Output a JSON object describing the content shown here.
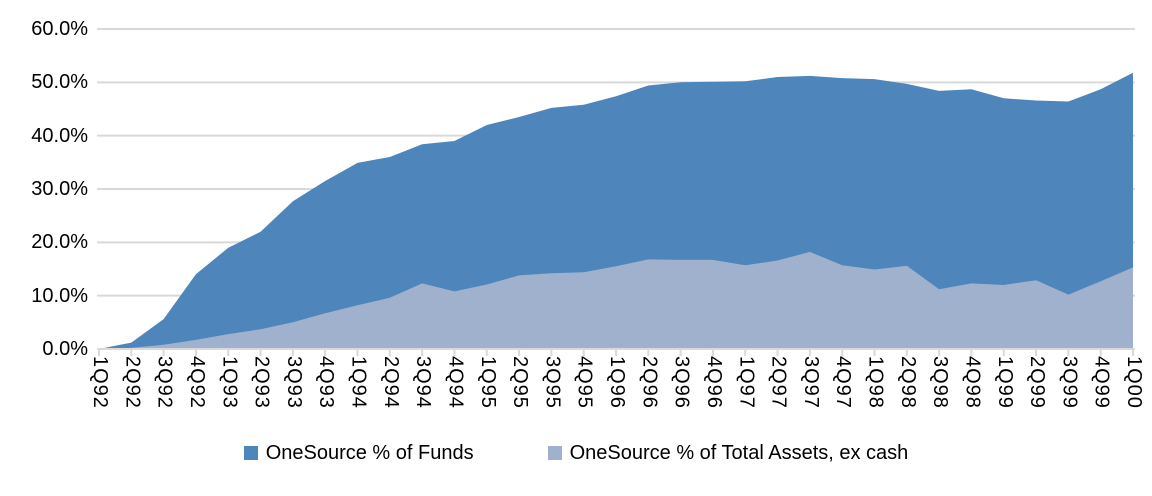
{
  "chart_data": {
    "type": "area",
    "mode": "overlapping",
    "title": "",
    "xlabel": "",
    "ylabel": "",
    "categories": [
      "1Q92",
      "2Q92",
      "3Q92",
      "4Q92",
      "1Q93",
      "2Q93",
      "3Q93",
      "4Q93",
      "1Q94",
      "2Q94",
      "3Q94",
      "4Q94",
      "1Q95",
      "2Q95",
      "3Q95",
      "4Q95",
      "1Q96",
      "2Q96",
      "3Q96",
      "4Q96",
      "1Q97",
      "2Q97",
      "3Q97",
      "4Q97",
      "1Q98",
      "2Q98",
      "3Q98",
      "4Q98",
      "1Q99",
      "2Q99",
      "3Q99",
      "4Q99",
      "1Q00"
    ],
    "series": [
      {
        "name": "OneSource % of Funds",
        "color": "#4E86BC",
        "values": [
          0.0,
          1.2,
          5.6,
          14.0,
          19.0,
          22.0,
          27.7,
          31.5,
          34.9,
          36.0,
          38.4,
          39.0,
          42.0,
          43.5,
          45.2,
          45.8,
          47.4,
          49.4,
          50.0,
          50.1,
          50.2,
          51.0,
          51.2,
          50.8,
          50.6,
          49.7,
          48.4,
          48.7,
          47.0,
          46.6,
          46.4,
          48.7,
          51.8
        ]
      },
      {
        "name": "OneSource % of Total Assets, ex cash",
        "color": "#9FB1CC",
        "values": [
          0.0,
          0.2,
          0.8,
          1.7,
          2.8,
          3.7,
          5.0,
          6.7,
          8.2,
          9.6,
          12.3,
          10.8,
          12.1,
          13.8,
          14.2,
          14.4,
          15.5,
          16.8,
          16.7,
          16.7,
          15.7,
          16.6,
          18.2,
          15.7,
          14.9,
          15.6,
          11.2,
          12.3,
          12.0,
          12.9,
          10.2,
          12.7,
          15.3
        ]
      }
    ],
    "ylim": [
      0,
      60
    ],
    "ytick_step": 10,
    "ytick_labels": [
      "0.0%",
      "10.0%",
      "20.0%",
      "30.0%",
      "40.0%",
      "50.0%",
      "60.0%"
    ],
    "grid": "horizontal",
    "gridline_color": "#D9D9D9",
    "axis_color": "#D9D9D9",
    "legend_position": "bottom-center",
    "background": "#FFFFFF"
  }
}
